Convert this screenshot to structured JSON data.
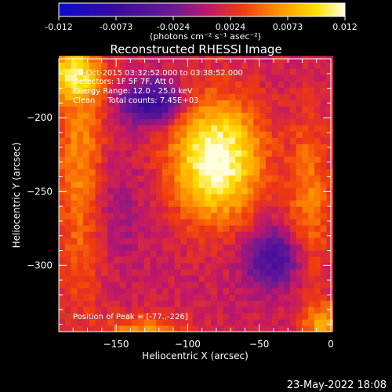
{
  "colorbar": {
    "ticks": [
      "-0.012",
      "-0.0073",
      "-0.0024",
      "0.0024",
      "0.0073",
      "0.012"
    ],
    "units": "(photons cm⁻² s⁻¹ asec⁻²)"
  },
  "title": "Reconstructed RHESSI Image",
  "info": {
    "time_range": "19-Oct-2015 03:32:52.000 to 03:38:52.000",
    "detectors": "Detectors: 1F 5F 7F, Att 0",
    "energy": "Energy Range: 12.0 - 25.0 keV",
    "clean": "Clean     Total counts: 7.45E+03",
    "peak": "Position of Peak = [-77.,-226]"
  },
  "footer_date": "23-May-2022 18:08",
  "chart_data": {
    "type": "heatmap",
    "title": "Reconstructed RHESSI Image",
    "xlabel": "Heliocentric X (arcsec)",
    "ylabel": "Heliocentric Y (arcsec)",
    "xlim": [
      -190,
      0
    ],
    "ylim": [
      -345,
      -160
    ],
    "xticks": [
      -150,
      -100,
      -50,
      0
    ],
    "yticks": [
      -200,
      -250,
      -300
    ],
    "xtick_labels": [
      "−150",
      "−100",
      "−50",
      "0"
    ],
    "ytick_labels": [
      "−200",
      "−250",
      "−300"
    ],
    "colorbar_range": [
      -0.012,
      0.012
    ],
    "colormap": [
      "#0b0bd2",
      "#3a0a9e",
      "#6a1a96",
      "#c0176a",
      "#f03a10",
      "#ff9a00",
      "#ffe000",
      "#ffffe0"
    ],
    "peak": [
      -77,
      -226
    ],
    "sources": [
      {
        "x": -80,
        "y": -228,
        "amplitude": 0.0115,
        "sx": 22,
        "sy": 28
      },
      {
        "x": -175,
        "y": -240,
        "amplitude": 0.0055,
        "sx": 12,
        "sy": 55
      },
      {
        "x": -180,
        "y": -170,
        "amplitude": 0.0075,
        "sx": 14,
        "sy": 12
      },
      {
        "x": -15,
        "y": -255,
        "amplitude": 0.0045,
        "sx": 10,
        "sy": 40
      },
      {
        "x": -5,
        "y": -340,
        "amplitude": 0.006,
        "sx": 10,
        "sy": 10
      },
      {
        "x": -130,
        "y": -345,
        "amplitude": 0.005,
        "sx": 20,
        "sy": 8
      },
      {
        "x": -125,
        "y": -190,
        "amplitude": -0.009,
        "sx": 14,
        "sy": 10
      },
      {
        "x": -40,
        "y": -295,
        "amplitude": -0.007,
        "sx": 14,
        "sy": 14
      },
      {
        "x": -155,
        "y": -260,
        "amplitude": -0.002,
        "sx": 20,
        "sy": 25
      }
    ]
  }
}
